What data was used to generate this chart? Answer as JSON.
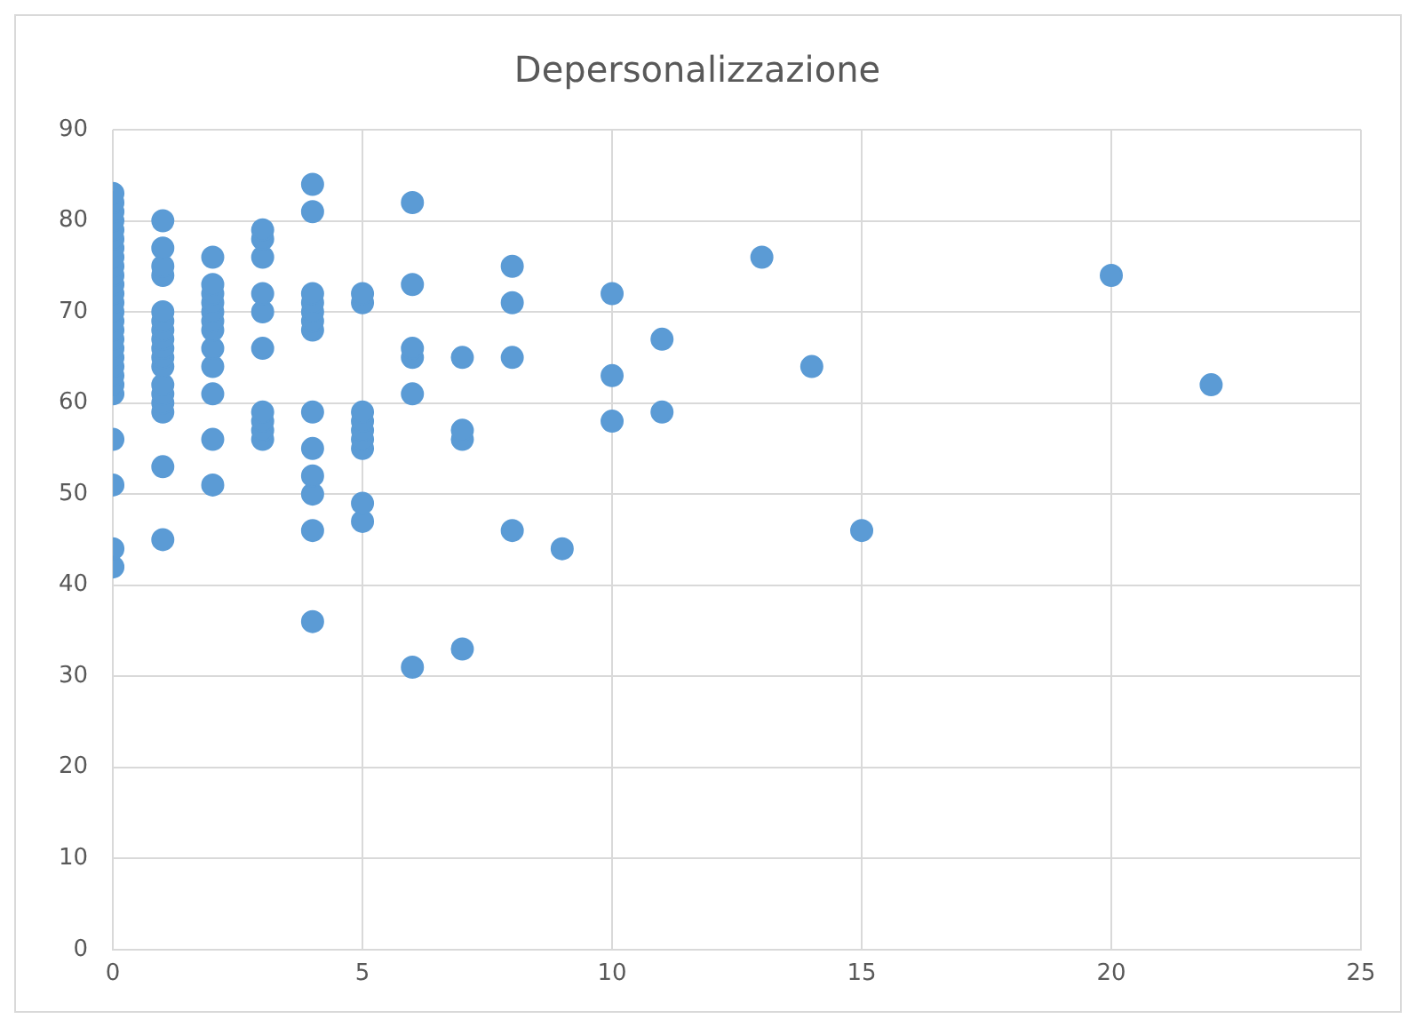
{
  "chart_data": {
    "type": "scatter",
    "title": "Depersonalizzazione",
    "xlim": [
      0,
      25
    ],
    "xticks": [
      0,
      5,
      10,
      15,
      20,
      25
    ],
    "ylim": [
      0,
      90
    ],
    "yticks": [
      0,
      10,
      20,
      30,
      40,
      50,
      60,
      70,
      80,
      90
    ],
    "grid": true,
    "marker": "circle",
    "legend": false,
    "series": [
      {
        "color": "#5b9bd5",
        "x": [
          0,
          0,
          0,
          0,
          0,
          0,
          0,
          0,
          0,
          0,
          0,
          0,
          0,
          0,
          0,
          0,
          0,
          0,
          0,
          0,
          0,
          0,
          0,
          0,
          0,
          0,
          0,
          1,
          1,
          1,
          1,
          1,
          1,
          1,
          1,
          1,
          1,
          1,
          1,
          1,
          1,
          1,
          1,
          1,
          2,
          2,
          2,
          2,
          2,
          2,
          2,
          2,
          2,
          2,
          2,
          2,
          3,
          3,
          3,
          3,
          3,
          3,
          3,
          3,
          3,
          3,
          4,
          4,
          4,
          4,
          4,
          4,
          4,
          4,
          4,
          4,
          4,
          4,
          4,
          5,
          5,
          5,
          5,
          5,
          5,
          5,
          5,
          5,
          6,
          6,
          6,
          6,
          6,
          6,
          7,
          7,
          7,
          7,
          8,
          8,
          8,
          8,
          9,
          10,
          10,
          10,
          11,
          11,
          13,
          14,
          15,
          20,
          22
        ],
        "values": [
          42,
          44,
          51,
          56,
          61,
          62,
          63,
          64,
          65,
          66,
          67,
          68,
          69,
          70,
          71,
          72,
          73,
          74,
          75,
          76,
          77,
          78,
          79,
          80,
          81,
          82,
          83,
          45,
          53,
          59,
          60,
          61,
          62,
          64,
          65,
          66,
          67,
          68,
          69,
          70,
          74,
          75,
          77,
          80,
          51,
          56,
          61,
          64,
          66,
          68,
          69,
          70,
          71,
          72,
          73,
          76,
          56,
          57,
          58,
          59,
          66,
          70,
          72,
          76,
          78,
          79,
          36,
          46,
          50,
          52,
          55,
          59,
          68,
          69,
          70,
          71,
          72,
          81,
          84,
          47,
          49,
          55,
          56,
          57,
          58,
          59,
          71,
          72,
          31,
          61,
          65,
          66,
          73,
          82,
          33,
          56,
          57,
          65,
          46,
          65,
          71,
          75,
          44,
          58,
          63,
          72,
          59,
          67,
          76,
          64,
          46,
          74,
          62
        ]
      }
    ]
  }
}
